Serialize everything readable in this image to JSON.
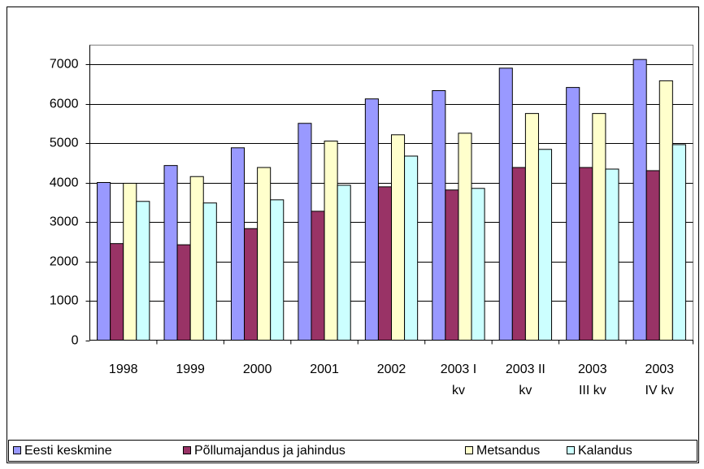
{
  "chart_data": {
    "type": "bar",
    "categories": [
      "1998",
      "1999",
      "2000",
      "2001",
      "2002",
      "2003 I kv",
      "2003 II kv",
      "2003 III kv",
      "2003 IV kv"
    ],
    "series": [
      {
        "name": "Eesti keskmine",
        "color": "#9999ff",
        "values": [
          4000,
          4430,
          4880,
          5500,
          6120,
          6330,
          6900,
          6410,
          7120
        ]
      },
      {
        "name": "Põllumajandus ja jahindus",
        "color": "#993366",
        "values": [
          2450,
          2420,
          2830,
          3270,
          3890,
          3810,
          4380,
          4380,
          4300
        ]
      },
      {
        "name": "Metsandus",
        "color": "#ffffcc",
        "values": [
          3980,
          4150,
          4380,
          5050,
          5210,
          5250,
          5750,
          5750,
          6580
        ]
      },
      {
        "name": "Kalandus",
        "color": "#ccffff",
        "values": [
          3520,
          3480,
          3560,
          3930,
          4670,
          3850,
          4840,
          4340,
          4960
        ]
      }
    ],
    "ylim": [
      0,
      7000
    ],
    "yticks": [
      0,
      1000,
      2000,
      3000,
      4000,
      5000,
      6000,
      7000
    ],
    "grid": true,
    "legend": "bottom"
  }
}
